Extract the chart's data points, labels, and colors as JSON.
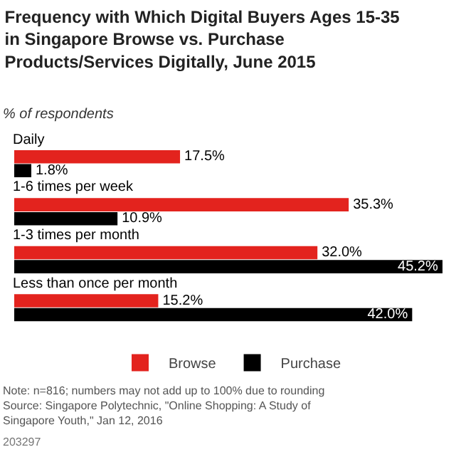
{
  "chart_data": {
    "type": "bar",
    "orientation": "horizontal",
    "title": "Frequency with Which Digital Buyers Ages 15-35 in Singapore Browse vs. Purchase Products/Services Digitally, June 2015",
    "subtitle": "% of respondents",
    "categories": [
      "Daily",
      "1-6 times per week",
      "1-3 times per month",
      "Less than once per month"
    ],
    "series": [
      {
        "name": "Browse",
        "color": "#e3231e",
        "values": [
          17.5,
          35.3,
          32.0,
          15.2
        ],
        "value_labels": [
          "17.5%",
          "35.3%",
          "32.0%",
          "15.2%"
        ]
      },
      {
        "name": "Purchase",
        "color": "#000000",
        "values": [
          1.8,
          10.9,
          45.2,
          42.0
        ],
        "value_labels": [
          "1.8%",
          "10.9%",
          "45.2%",
          "42.0%"
        ]
      }
    ],
    "legend": "bottom",
    "grid": false,
    "tick_labels": false,
    "annotations": [
      "Note: n=816; numbers may not add up to 100% due to rounding",
      "Source: Singapore Polytechnic, \"Online Shopping: A Study of Singapore Youth,\" Jan 12, 2016",
      "203297"
    ]
  }
}
